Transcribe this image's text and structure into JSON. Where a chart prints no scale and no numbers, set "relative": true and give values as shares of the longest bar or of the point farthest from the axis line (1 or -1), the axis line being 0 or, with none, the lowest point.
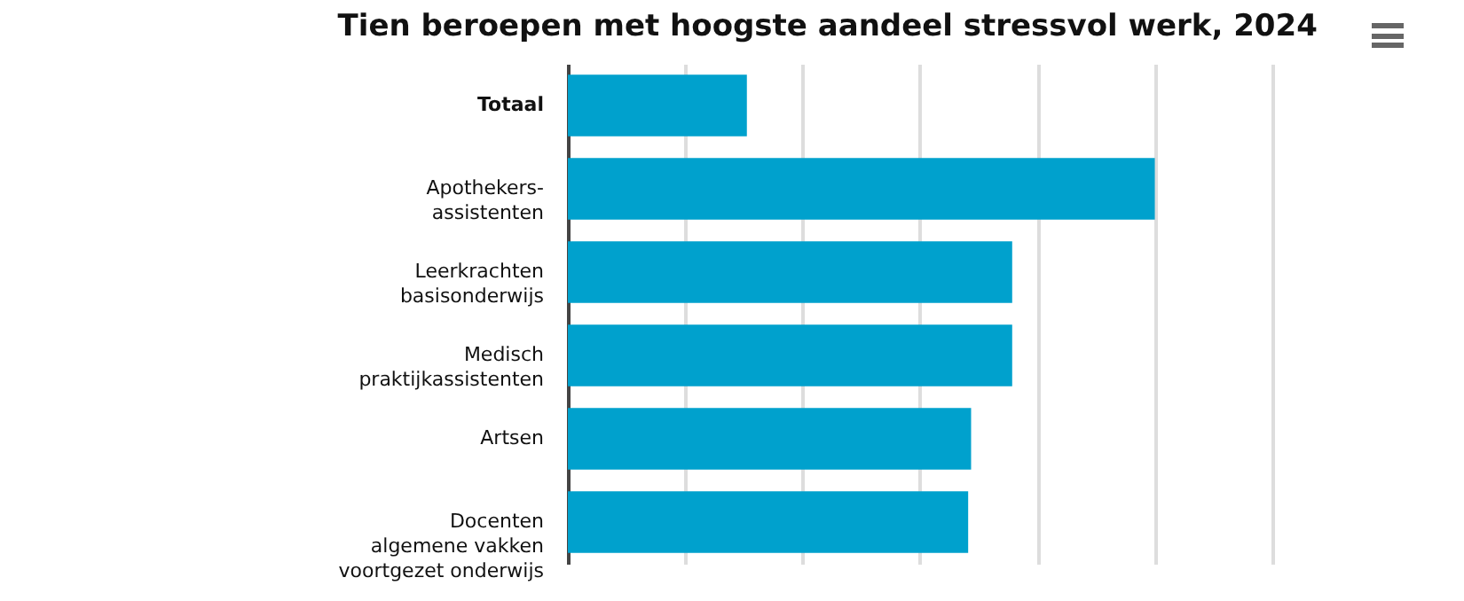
{
  "chart_data": {
    "type": "bar",
    "orientation": "horizontal",
    "relative": true,
    "title": "Tien beroepen met hoogste aandeel stressvol werk, 2024",
    "categories": [
      "Totaal",
      "Apothekers-\nassistenten",
      "Leerkrachten\nbasisonderwijs",
      "Medisch\npraktijkassistenten",
      "Artsen",
      "Docenten\nalgemene vakken\nvoortgezet onderwijs"
    ],
    "values": [
      0.305,
      1,
      0.757,
      0.757,
      0.687,
      0.682
    ],
    "color": "#00a1cd",
    "grid": "x"
  }
}
